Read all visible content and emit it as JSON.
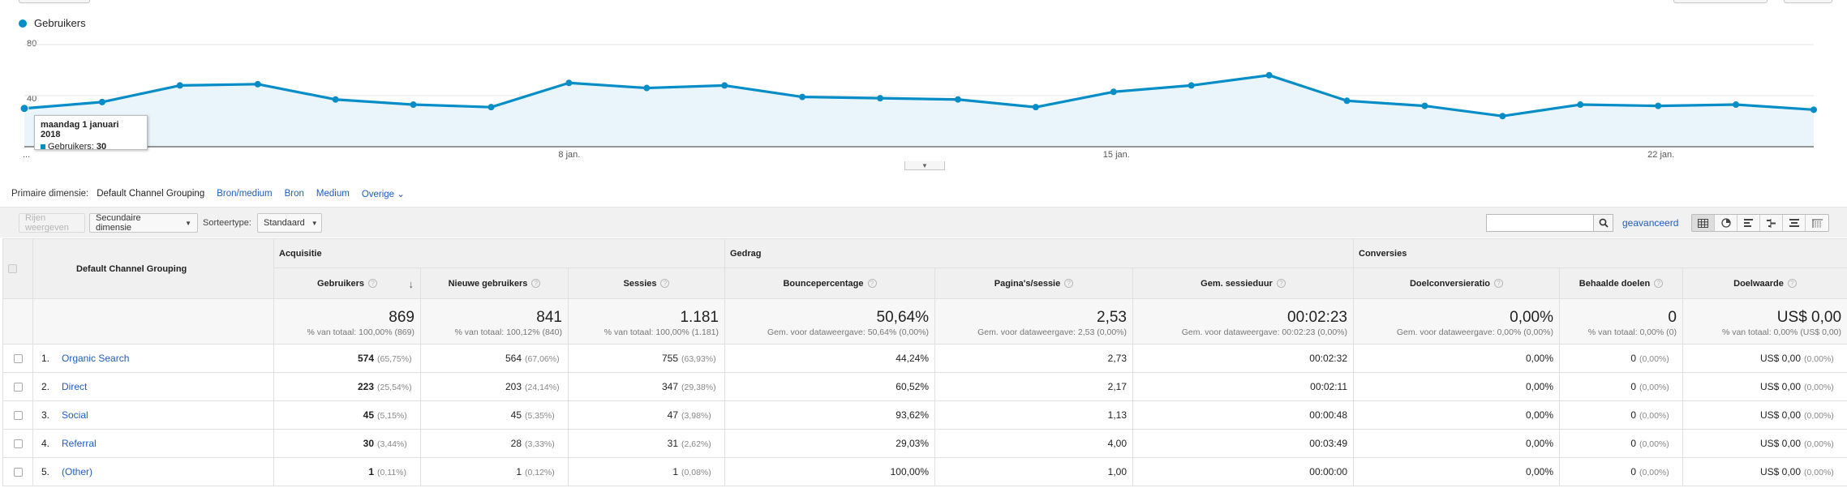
{
  "legend": {
    "series_label": "Gebruikers",
    "color": "#058dc7"
  },
  "chart_data": {
    "type": "area",
    "series": [
      {
        "name": "Gebruikers",
        "color": "#058dc7",
        "values": [
          30,
          35,
          48,
          49,
          37,
          33,
          31,
          50,
          46,
          48,
          39,
          38,
          37,
          31,
          43,
          48,
          56,
          36,
          32,
          24,
          33,
          32,
          33,
          29
        ]
      }
    ],
    "x_tick_labels": [
      {
        "index": 0,
        "label": "..."
      },
      {
        "index": 7,
        "label": "8 jan."
      },
      {
        "index": 14,
        "label": "15 jan."
      },
      {
        "index": 21,
        "label": "22 jan."
      }
    ],
    "y_tick_labels": [
      "40",
      "80"
    ],
    "ylim": [
      0,
      80
    ],
    "grid": true
  },
  "tooltip": {
    "title": "maandag 1 januari 2018",
    "series": "Gebruikers:",
    "value": "30"
  },
  "dimension_bar": {
    "label": "Primaire dimensie:",
    "active": "Default Channel Grouping",
    "links": [
      "Bron/medium",
      "Bron",
      "Medium",
      "Overige"
    ],
    "more_caret": "⌄"
  },
  "toolbar": {
    "rows_button": "Rijen weergeven",
    "secondary_dimension": "Secundaire dimensie",
    "sort_label": "Sorteertype:",
    "sort_value": "Standaard",
    "search_placeholder": "",
    "advanced_link": "geavanceerd"
  },
  "table": {
    "dimension_header": "Default Channel Grouping",
    "groups": {
      "acquisition": "Acquisitie",
      "behavior": "Gedrag",
      "conversions": "Conversies"
    },
    "metrics": [
      "Gebruikers",
      "Nieuwe gebruikers",
      "Sessies",
      "Bouncepercentage",
      "Pagina's/sessie",
      "Gem. sessieduur",
      "Doelconversieratio",
      "Behaalde doelen",
      "Doelwaarde"
    ],
    "totals": [
      {
        "value": "869",
        "sub": "% van totaal: 100,00% (869)"
      },
      {
        "value": "841",
        "sub": "% van totaal: 100,12% (840)"
      },
      {
        "value": "1.181",
        "sub": "% van totaal: 100,00% (1.181)"
      },
      {
        "value": "50,64%",
        "sub": "Gem. voor dataweergave: 50,64% (0,00%)"
      },
      {
        "value": "2,53",
        "sub": "Gem. voor dataweergave: 2,53 (0,00%)"
      },
      {
        "value": "00:02:23",
        "sub": "Gem. voor dataweergave: 00:02:23 (0,00%)"
      },
      {
        "value": "0,00%",
        "sub": "Gem. voor dataweergave: 0,00% (0,00%)"
      },
      {
        "value": "0",
        "sub": "% van totaal: 0,00% (0)"
      },
      {
        "value": "US$ 0,00",
        "sub": "% van totaal: 0,00% (US$ 0,00)"
      }
    ],
    "rows": [
      {
        "rank": "1.",
        "name": "Organic Search",
        "users": "574",
        "users_pct": "(65,75%)",
        "new_users": "564",
        "new_users_pct": "(67,06%)",
        "sessions": "755",
        "sessions_pct": "(63,93%)",
        "bounce": "44,24%",
        "pages": "2,73",
        "duration": "00:02:32",
        "conv_rate": "0,00%",
        "goals": "0",
        "goals_pct": "(0,00%)",
        "goal_value": "US$ 0,00",
        "goal_value_pct": "(0,00%)"
      },
      {
        "rank": "2.",
        "name": "Direct",
        "users": "223",
        "users_pct": "(25,54%)",
        "new_users": "203",
        "new_users_pct": "(24,14%)",
        "sessions": "347",
        "sessions_pct": "(29,38%)",
        "bounce": "60,52%",
        "pages": "2,17",
        "duration": "00:02:11",
        "conv_rate": "0,00%",
        "goals": "0",
        "goals_pct": "(0,00%)",
        "goal_value": "US$ 0,00",
        "goal_value_pct": "(0,00%)"
      },
      {
        "rank": "3.",
        "name": "Social",
        "users": "45",
        "users_pct": "(5,15%)",
        "new_users": "45",
        "new_users_pct": "(5,35%)",
        "sessions": "47",
        "sessions_pct": "(3,98%)",
        "bounce": "93,62%",
        "pages": "1,13",
        "duration": "00:00:48",
        "conv_rate": "0,00%",
        "goals": "0",
        "goals_pct": "(0,00%)",
        "goal_value": "US$ 0,00",
        "goal_value_pct": "(0,00%)"
      },
      {
        "rank": "4.",
        "name": "Referral",
        "users": "30",
        "users_pct": "(3,44%)",
        "new_users": "28",
        "new_users_pct": "(3,33%)",
        "sessions": "31",
        "sessions_pct": "(2,62%)",
        "bounce": "29,03%",
        "pages": "4,00",
        "duration": "00:03:49",
        "conv_rate": "0,00%",
        "goals": "0",
        "goals_pct": "(0,00%)",
        "goal_value": "US$ 0,00",
        "goal_value_pct": "(0,00%)"
      },
      {
        "rank": "5.",
        "name": "(Other)",
        "users": "1",
        "users_pct": "(0,11%)",
        "new_users": "1",
        "new_users_pct": "(0,12%)",
        "sessions": "1",
        "sessions_pct": "(0,08%)",
        "bounce": "100,00%",
        "pages": "1,00",
        "duration": "00:00:00",
        "conv_rate": "0,00%",
        "goals": "0",
        "goals_pct": "(0,00%)",
        "goal_value": "US$ 0,00",
        "goal_value_pct": "(0,00%)"
      }
    ]
  }
}
